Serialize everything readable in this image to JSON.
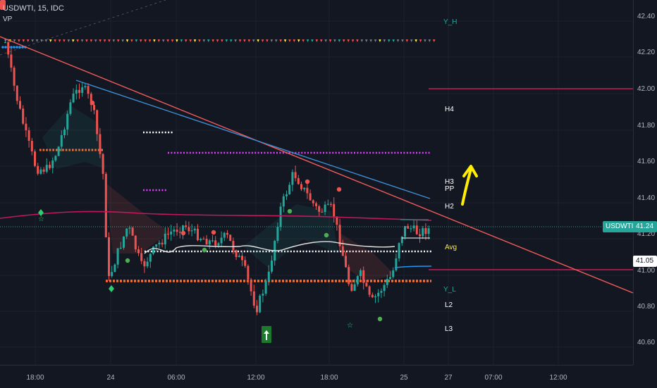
{
  "header": {
    "symbol_title": "USDWTI, 15, IDC",
    "indicator_label": "VP"
  },
  "price_axis": {
    "ticks": [
      "42.40",
      "42.20",
      "42.00",
      "41.80",
      "41.60",
      "41.40",
      "41.20",
      "41.00",
      "40.80",
      "40.60"
    ]
  },
  "time_axis": {
    "ticks": [
      "18:00",
      "24",
      "06:00",
      "12:00",
      "18:00",
      "25",
      "27",
      "07:00",
      "12:00"
    ]
  },
  "levels": {
    "y_h": "Y_H",
    "h4": "H4",
    "h3": "H3",
    "pp": "PP",
    "h2": "H2",
    "avg": "Avg",
    "y_l": "Y_L",
    "l2": "L2",
    "l3": "L3"
  },
  "price_tags": {
    "current_symbol": "USDWTI",
    "current_price": "41.24",
    "level_price": "41.05"
  },
  "colors": {
    "background": "#131722",
    "bull": "#26a69a",
    "bear": "#ef5350",
    "trendline_red": "#f05b5b",
    "trendline_blue": "#3d8fd6",
    "pivot_purple": "#e040fb",
    "pivot_orange": "#ff6d2d",
    "arrow_yellow": "#ffee00",
    "pink_line": "#e91e63",
    "tag_teal": "#26a69a"
  },
  "icons": [
    "up-arrow-marker-icon",
    "diamond-marker-icon",
    "star-marker-icon",
    "circle-marker-icon"
  ]
}
